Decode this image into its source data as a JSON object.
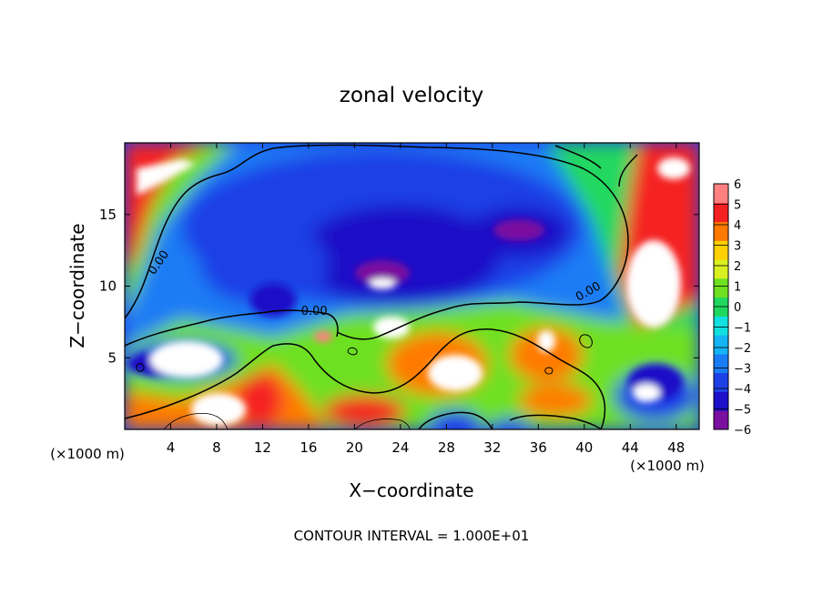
{
  "chart_data": {
    "type": "heatmap",
    "title": "zonal velocity",
    "xlabel": "X−coordinate",
    "ylabel": "Z−coordinate",
    "x_unit_left": "(×1000 m)",
    "x_unit_right": "(×1000 m)",
    "footer": "CONTOUR INTERVAL = 1.000E+01",
    "xlim": [
      0,
      50
    ],
    "ylim": [
      0,
      20
    ],
    "x_ticks": [
      4,
      8,
      12,
      16,
      20,
      24,
      28,
      32,
      36,
      40,
      44,
      48
    ],
    "y_ticks": [
      5,
      10,
      15
    ],
    "contour_labels": [
      {
        "text": "0.00",
        "x": 3.2,
        "z": 11.5
      },
      {
        "text": "0.00",
        "x": 16.5,
        "z": 8.0
      },
      {
        "text": "0.00",
        "x": 40.5,
        "z": 9.4
      }
    ],
    "colorbar": {
      "min": -6,
      "max": 6,
      "tick_labels": [
        "6",
        "5",
        "4",
        "3",
        "2",
        "1",
        "0",
        "−1",
        "−2",
        "−3",
        "−4",
        "−5",
        "−6"
      ],
      "colors": [
        "#7a0fa0",
        "#1e10c8",
        "#1d40e6",
        "#1a7cf5",
        "#14b4f5",
        "#10e0e0",
        "#20d860",
        "#6ee020",
        "#d8f020",
        "#ffd000",
        "#ff7a00",
        "#f52020",
        "#ff8080"
      ]
    }
  }
}
